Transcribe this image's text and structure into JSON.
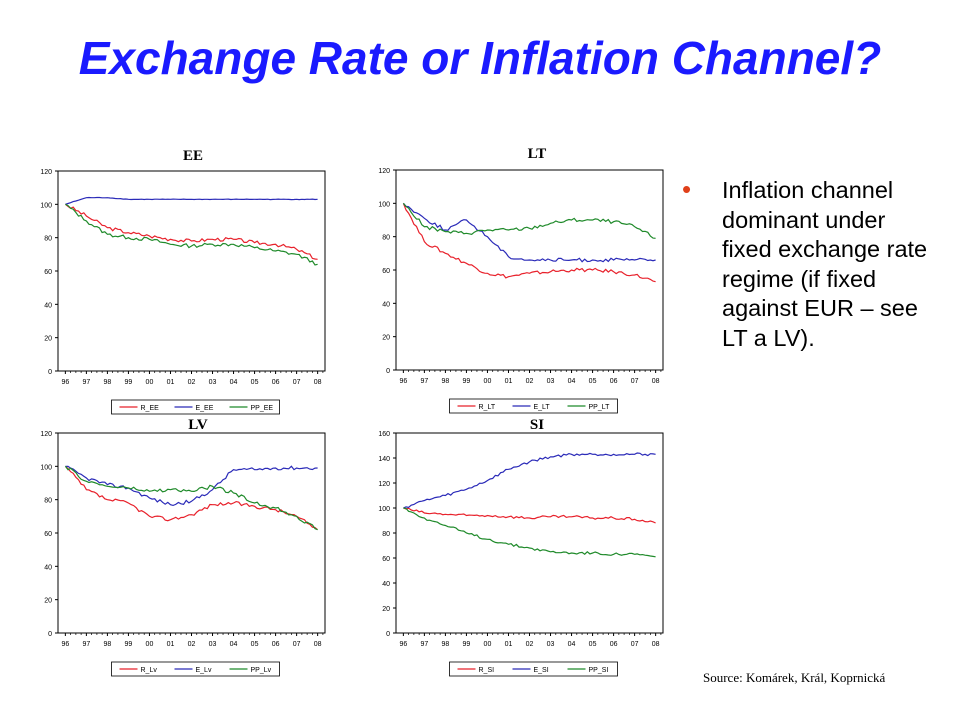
{
  "slide": {
    "title": "Exchange Rate or Inflation Channel?",
    "bullet": "Inflation channel dominant under fixed exchange rate regime (if fixed against EUR – see LT a LV).",
    "source": "Source: Komárek, Král, Koprnická"
  },
  "colors": {
    "title": "#1a1aff",
    "bullet": "#e0401a",
    "R": "#e8212b",
    "E": "#2a2ab8",
    "PP": "#1f8a2a"
  },
  "chart_data": [
    {
      "type": "line",
      "title": "EE",
      "x": [
        "96",
        "97",
        "98",
        "99",
        "00",
        "01",
        "02",
        "03",
        "04",
        "05",
        "06",
        "07",
        "08"
      ],
      "ylim": [
        0,
        120
      ],
      "yticks": [
        0,
        20,
        40,
        60,
        80,
        100,
        120
      ],
      "series": [
        {
          "name": "R_EE",
          "color": "#e8212b",
          "values": [
            100,
            93,
            86,
            83,
            81,
            79,
            78,
            79,
            79,
            77,
            76,
            73,
            67
          ]
        },
        {
          "name": "E_EE",
          "color": "#2a2ab8",
          "values": [
            100,
            104,
            104,
            103,
            103,
            103,
            103,
            103,
            103,
            103,
            103,
            103,
            103
          ]
        },
        {
          "name": "PP_EE",
          "color": "#1f8a2a",
          "values": [
            100,
            90,
            82,
            80,
            79,
            76,
            75,
            76,
            76,
            74,
            72,
            70,
            64
          ]
        }
      ]
    },
    {
      "type": "line",
      "title": "LT",
      "x": [
        "96",
        "97",
        "98",
        "99",
        "00",
        "01",
        "02",
        "03",
        "04",
        "05",
        "06",
        "07",
        "08"
      ],
      "ylim": [
        0,
        120
      ],
      "yticks": [
        0,
        20,
        40,
        60,
        80,
        100,
        120
      ],
      "series": [
        {
          "name": "R_LT",
          "color": "#e8212b",
          "values": [
            100,
            77,
            70,
            64,
            58,
            56,
            58,
            59,
            60,
            60,
            59,
            57,
            53
          ]
        },
        {
          "name": "E_LT",
          "color": "#2a2ab8",
          "values": [
            100,
            91,
            84,
            90,
            80,
            68,
            66,
            66,
            66,
            66,
            66,
            66,
            66
          ]
        },
        {
          "name": "PP_LT",
          "color": "#1f8a2a",
          "values": [
            100,
            86,
            83,
            82,
            84,
            84,
            85,
            88,
            90,
            90,
            89,
            86,
            79
          ]
        }
      ]
    },
    {
      "type": "line",
      "title": "LV",
      "x": [
        "96",
        "97",
        "98",
        "99",
        "00",
        "01",
        "02",
        "03",
        "04",
        "05",
        "06",
        "07",
        "08"
      ],
      "ylim": [
        0,
        120
      ],
      "yticks": [
        0,
        20,
        40,
        60,
        80,
        100,
        120
      ],
      "series": [
        {
          "name": "R_Lv",
          "color": "#e8212b",
          "values": [
            100,
            86,
            80,
            78,
            70,
            68,
            71,
            77,
            78,
            76,
            74,
            70,
            62
          ]
        },
        {
          "name": "E_Lv",
          "color": "#2a2ab8",
          "values": [
            100,
            93,
            89,
            87,
            81,
            77,
            79,
            86,
            98,
            98,
            99,
            99,
            99
          ]
        },
        {
          "name": "PP_Lv",
          "color": "#1f8a2a",
          "values": [
            100,
            91,
            88,
            87,
            85,
            86,
            85,
            88,
            84,
            78,
            75,
            70,
            62
          ]
        }
      ]
    },
    {
      "type": "line",
      "title": "SI",
      "x": [
        "96",
        "97",
        "98",
        "99",
        "00",
        "01",
        "02",
        "03",
        "04",
        "05",
        "06",
        "07",
        "08"
      ],
      "ylim": [
        0,
        160
      ],
      "yticks": [
        0,
        20,
        40,
        60,
        80,
        100,
        120,
        140,
        160
      ],
      "series": [
        {
          "name": "R_SI",
          "color": "#e8212b",
          "values": [
            100,
            96,
            95,
            94,
            94,
            93,
            92,
            93,
            93,
            92,
            92,
            91,
            88
          ]
        },
        {
          "name": "E_SI",
          "color": "#2a2ab8",
          "values": [
            100,
            106,
            110,
            115,
            122,
            131,
            137,
            141,
            143,
            143,
            143,
            143,
            143
          ]
        },
        {
          "name": "PP_SI",
          "color": "#1f8a2a",
          "values": [
            100,
            92,
            86,
            80,
            75,
            71,
            68,
            65,
            64,
            64,
            63,
            63,
            61
          ]
        }
      ]
    }
  ]
}
